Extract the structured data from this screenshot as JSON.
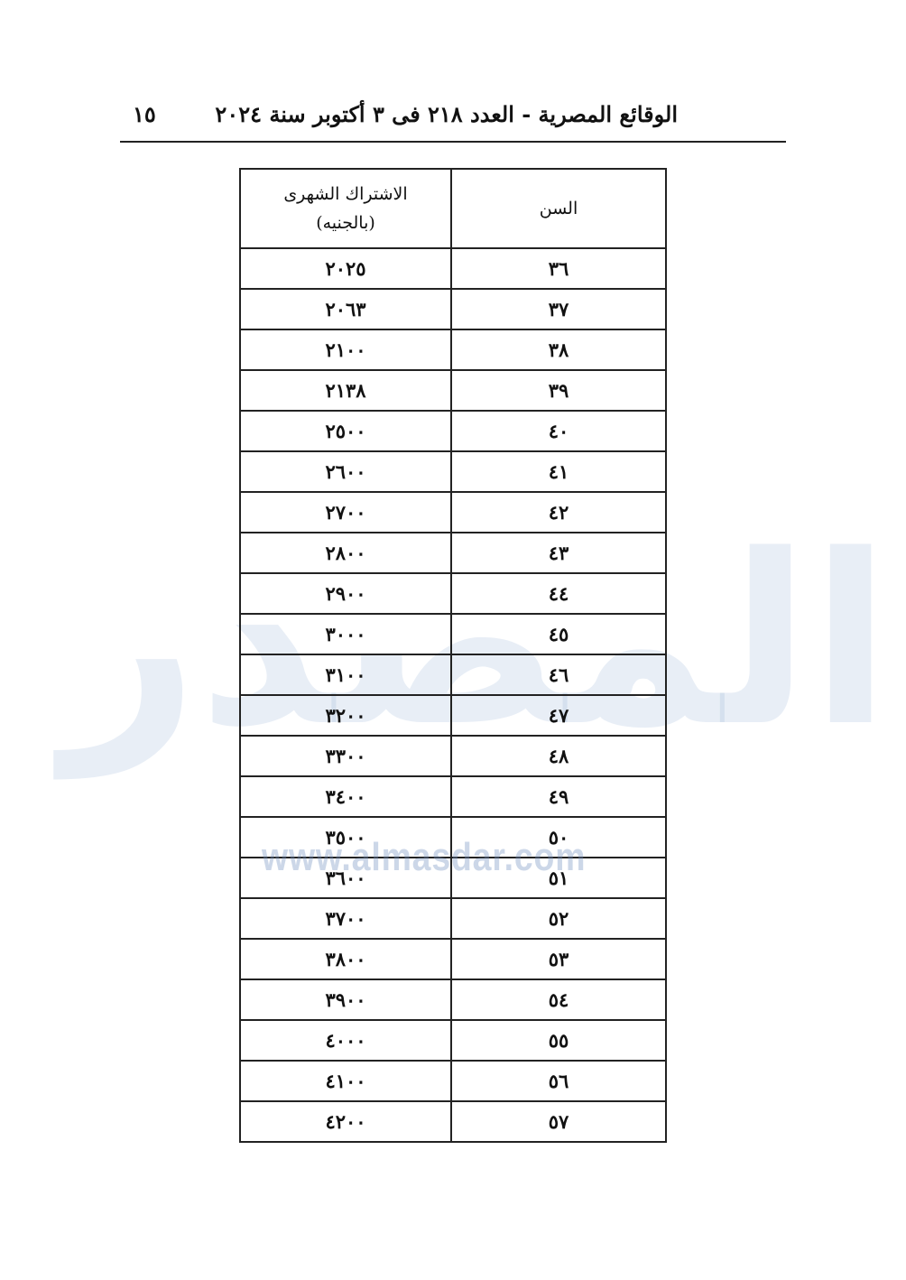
{
  "header": {
    "title": "الوقائع المصرية - العدد ٢١٨ فى ٣ أكتوبر سنة ٢٠٢٤",
    "page_number": "١٥"
  },
  "watermark": {
    "text": "www.almasdar.com",
    "logo_text": "المصدر"
  },
  "table": {
    "columns": [
      "السن",
      "الاشتراك الشهرى (بالجنيه)"
    ],
    "column_lines": {
      "fee_line1": "الاشتراك الشهرى",
      "fee_line2": "(بالجنيه)"
    },
    "rows": [
      {
        "age": "٣٦",
        "fee": "٢٠٢٥"
      },
      {
        "age": "٣٧",
        "fee": "٢٠٦٣"
      },
      {
        "age": "٣٨",
        "fee": "٢١٠٠"
      },
      {
        "age": "٣٩",
        "fee": "٢١٣٨"
      },
      {
        "age": "٤٠",
        "fee": "٢٥٠٠"
      },
      {
        "age": "٤١",
        "fee": "٢٦٠٠"
      },
      {
        "age": "٤٢",
        "fee": "٢٧٠٠"
      },
      {
        "age": "٤٣",
        "fee": "٢٨٠٠"
      },
      {
        "age": "٤٤",
        "fee": "٢٩٠٠"
      },
      {
        "age": "٤٥",
        "fee": "٣٠٠٠"
      },
      {
        "age": "٤٦",
        "fee": "٣١٠٠"
      },
      {
        "age": "٤٧",
        "fee": "٣٢٠٠"
      },
      {
        "age": "٤٨",
        "fee": "٣٣٠٠"
      },
      {
        "age": "٤٩",
        "fee": "٣٤٠٠"
      },
      {
        "age": "٥٠",
        "fee": "٣٥٠٠"
      },
      {
        "age": "٥١",
        "fee": "٣٦٠٠"
      },
      {
        "age": "٥٢",
        "fee": "٣٧٠٠"
      },
      {
        "age": "٥٣",
        "fee": "٣٨٠٠"
      },
      {
        "age": "٥٤",
        "fee": "٣٩٠٠"
      },
      {
        "age": "٥٥",
        "fee": "٤٠٠٠"
      },
      {
        "age": "٥٦",
        "fee": "٤١٠٠"
      },
      {
        "age": "٥٧",
        "fee": "٤٢٠٠"
      }
    ]
  }
}
